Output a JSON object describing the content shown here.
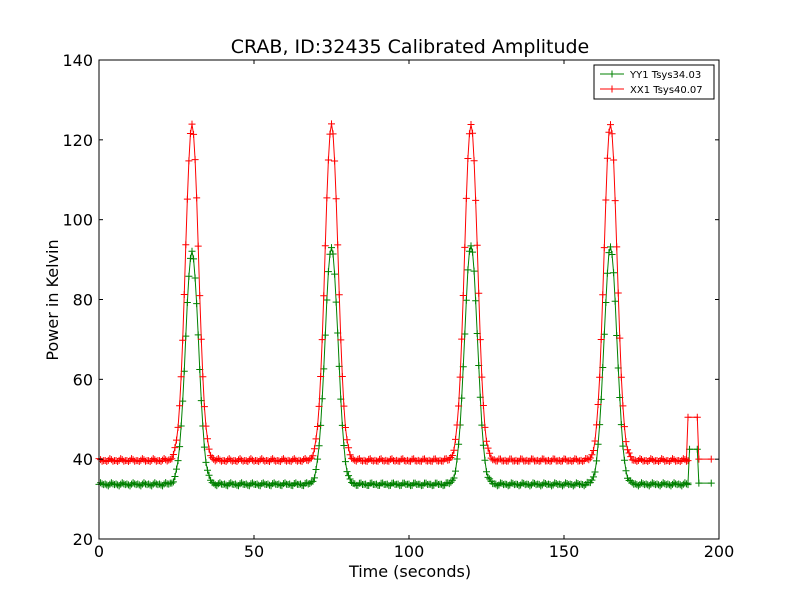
{
  "chart_data": {
    "type": "line",
    "title": "CRAB, ID:32435 Calibrated Amplitude",
    "xlabel": "Time (seconds)",
    "ylabel": "Power in Kelvin",
    "xlim": [
      0,
      200
    ],
    "ylim": [
      20,
      140
    ],
    "xticks": [
      0,
      50,
      100,
      150,
      200
    ],
    "yticks": [
      20,
      40,
      60,
      80,
      100,
      120,
      140
    ],
    "grid": false,
    "legend_position": "top-right",
    "marker": "+",
    "series": [
      {
        "name": "YY1 Tsys34.03",
        "color": "#008000",
        "baseline": 33.7,
        "peaks": [
          {
            "x": 30,
            "y": 92
          },
          {
            "x": 75,
            "y": 93
          },
          {
            "x": 120,
            "y": 93.5
          },
          {
            "x": 165,
            "y": 93
          }
        ],
        "tail": [
          {
            "x": 190,
            "y": 34
          },
          {
            "x": 190.5,
            "y": 42.5
          },
          {
            "x": 193,
            "y": 42.5
          },
          {
            "x": 193.5,
            "y": 34
          },
          {
            "x": 197.5,
            "y": 34
          }
        ]
      },
      {
        "name": "XX1 Tsys40.07",
        "color": "#ff0000",
        "baseline": 39.7,
        "peaks": [
          {
            "x": 30,
            "y": 124
          },
          {
            "x": 75,
            "y": 124
          },
          {
            "x": 120,
            "y": 124
          },
          {
            "x": 165,
            "y": 124
          }
        ],
        "tail": [
          {
            "x": 189.5,
            "y": 40
          },
          {
            "x": 190,
            "y": 50.5
          },
          {
            "x": 193,
            "y": 50.5
          },
          {
            "x": 193.5,
            "y": 40
          },
          {
            "x": 197.5,
            "y": 40
          }
        ]
      }
    ]
  }
}
